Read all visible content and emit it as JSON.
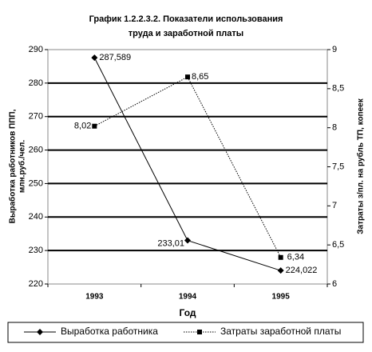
{
  "chart_data": {
    "type": "line",
    "title": [
      "График 1.2.2.3.2.  Показатели использования",
      "труда и заработной платы"
    ],
    "x_label": "Год",
    "y_label": [
      "Выработка работников ППП,",
      "млн.руб./чел."
    ],
    "y2_label": "Затраты з/пл. на рубль ТП, копеек",
    "categories": [
      "1993",
      "1994",
      "1995"
    ],
    "ylim": [
      220,
      290
    ],
    "yticks": [
      220,
      230,
      240,
      250,
      260,
      270,
      280,
      290
    ],
    "y2lim": [
      6,
      9
    ],
    "y2ticks": [
      6,
      {
        "value": 6.5,
        "label": "6,5"
      },
      7,
      {
        "value": 7.5,
        "label": "7,5"
      },
      8,
      {
        "value": 8.5,
        "label": "8,5"
      },
      9
    ],
    "grid": true,
    "legend_position": "bottom",
    "series": [
      {
        "name": "Выработка работника",
        "color": "#000000",
        "marker": "diamond",
        "line_style": "solid",
        "values": [
          287.589,
          233.01,
          224.022
        ],
        "value_labels": [
          "287,589",
          "233,01",
          "224,022"
        ]
      },
      {
        "name": "Затраты заработной платы",
        "color": "#000000",
        "marker": "square",
        "line_style": "dotted",
        "axis": "y2",
        "values": [
          8.02,
          8.65,
          6.34
        ],
        "value_labels": [
          "8,02",
          "8,65",
          "6,34"
        ]
      }
    ]
  }
}
